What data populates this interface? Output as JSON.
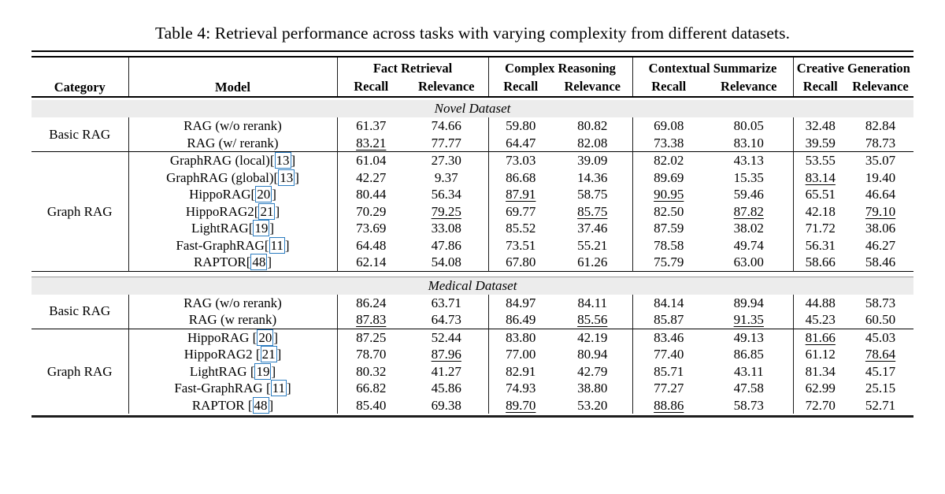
{
  "caption": "Table 4: Retrieval performance across tasks with varying complexity from different datasets.",
  "colors": {
    "band_bg": "#ececec",
    "citation_box_blue": "#2b7cc0",
    "rule_black": "#000000"
  },
  "header": {
    "category": "Category",
    "model": "Model",
    "groups": [
      {
        "name": "Fact Retrieval",
        "sub": [
          "Recall",
          "Relevance"
        ]
      },
      {
        "name": "Complex Reasoning",
        "sub": [
          "Recall",
          "Relevance"
        ]
      },
      {
        "name": "Contextual Summarize",
        "sub": [
          "Recall",
          "Relevance"
        ]
      },
      {
        "name": "Creative Generation",
        "sub": [
          "Recall",
          "Relevance"
        ]
      }
    ]
  },
  "sections": [
    {
      "dataset": "Novel Dataset",
      "groups": [
        {
          "category": "Basic RAG",
          "rows": [
            {
              "model": "RAG (w/o rerank)",
              "cite": null,
              "values": [
                "61.37",
                "74.66",
                "59.80",
                "80.82",
                "69.08",
                "80.05",
                "32.48",
                "82.84"
              ],
              "underline": []
            },
            {
              "model": "RAG (w/ rerank)",
              "cite": null,
              "values": [
                "83.21",
                "77.77",
                "64.47",
                "82.08",
                "73.38",
                "83.10",
                "39.59",
                "78.73"
              ],
              "underline": [
                0
              ]
            }
          ]
        },
        {
          "category": "Graph RAG",
          "rows": [
            {
              "model": "GraphRAG (local)",
              "cite": "13",
              "values": [
                "61.04",
                "27.30",
                "73.03",
                "39.09",
                "82.02",
                "43.13",
                "53.55",
                "35.07"
              ],
              "underline": []
            },
            {
              "model": "GraphRAG (global)",
              "cite": "13",
              "values": [
                "42.27",
                "9.37",
                "86.68",
                "14.36",
                "89.69",
                "15.35",
                "83.14",
                "19.40"
              ],
              "underline": [
                6
              ]
            },
            {
              "model": "HippoRAG",
              "cite": "20",
              "values": [
                "80.44",
                "56.34",
                "87.91",
                "58.75",
                "90.95",
                "59.46",
                "65.51",
                "46.64"
              ],
              "underline": [
                2,
                4
              ]
            },
            {
              "model": "HippoRAG2",
              "cite": "21",
              "values": [
                "70.29",
                "79.25",
                "69.77",
                "85.75",
                "82.50",
                "87.82",
                "42.18",
                "79.10"
              ],
              "underline": [
                1,
                3,
                5,
                7
              ]
            },
            {
              "model": "LightRAG",
              "cite": "19",
              "values": [
                "73.69",
                "33.08",
                "85.52",
                "37.46",
                "87.59",
                "38.02",
                "71.72",
                "38.06"
              ],
              "underline": []
            },
            {
              "model": "Fast-GraphRAG",
              "cite": "11",
              "values": [
                "64.48",
                "47.86",
                "73.51",
                "55.21",
                "78.58",
                "49.74",
                "56.31",
                "46.27"
              ],
              "underline": []
            },
            {
              "model": "RAPTOR",
              "cite": "48",
              "values": [
                "62.14",
                "54.08",
                "67.80",
                "61.26",
                "75.79",
                "63.00",
                "58.66",
                "58.46"
              ],
              "underline": []
            }
          ]
        }
      ]
    },
    {
      "dataset": "Medical Dataset",
      "groups": [
        {
          "category": "Basic RAG",
          "rows": [
            {
              "model": "RAG (w/o rerank)",
              "cite": null,
              "values": [
                "86.24",
                "63.71",
                "84.97",
                "84.11",
                "84.14",
                "89.94",
                "44.88",
                "58.73"
              ],
              "underline": []
            },
            {
              "model": "RAG (w rerank)",
              "cite": null,
              "values": [
                "87.83",
                "64.73",
                "86.49",
                "85.56",
                "85.87",
                "91.35",
                "45.23",
                "60.50"
              ],
              "underline": [
                0,
                3,
                5
              ]
            }
          ]
        },
        {
          "category": "Graph RAG",
          "rows": [
            {
              "model": "HippoRAG ",
              "cite": "20",
              "values": [
                "87.25",
                "52.44",
                "83.80",
                "42.19",
                "83.46",
                "49.13",
                "81.66",
                "45.03"
              ],
              "underline": [
                6
              ]
            },
            {
              "model": "HippoRAG2 ",
              "cite": "21",
              "values": [
                "78.70",
                "87.96",
                "77.00",
                "80.94",
                "77.40",
                "86.85",
                "61.12",
                "78.64"
              ],
              "underline": [
                1,
                7
              ]
            },
            {
              "model": "LightRAG ",
              "cite": "19",
              "values": [
                "80.32",
                "41.27",
                "82.91",
                "42.79",
                "85.71",
                "43.11",
                "81.34",
                "45.17"
              ],
              "underline": []
            },
            {
              "model": "Fast-GraphRAG ",
              "cite": "11",
              "values": [
                "66.82",
                "45.86",
                "74.93",
                "38.80",
                "77.27",
                "47.58",
                "62.99",
                "25.15"
              ],
              "underline": []
            },
            {
              "model": "RAPTOR ",
              "cite": "48",
              "values": [
                "85.40",
                "69.38",
                "89.70",
                "53.20",
                "88.86",
                "58.73",
                "72.70",
                "52.71"
              ],
              "underline": [
                2,
                4
              ]
            }
          ]
        }
      ]
    }
  ]
}
